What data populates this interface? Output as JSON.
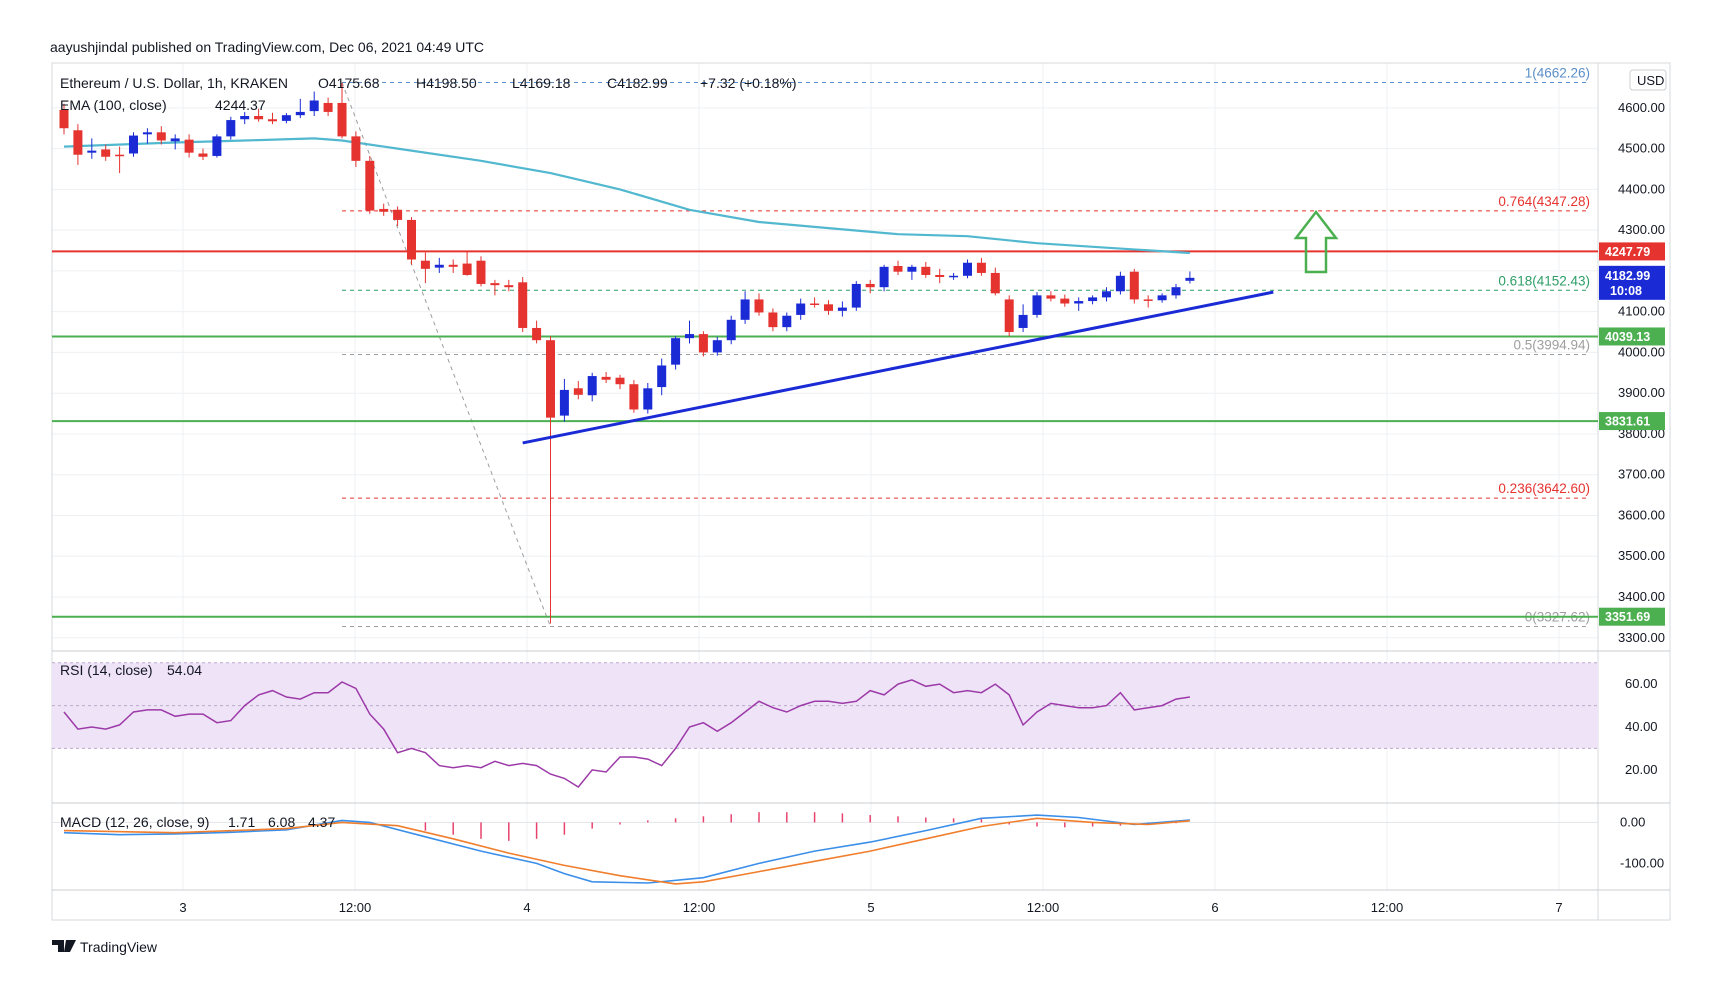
{
  "publish_line": "aayushjindal published on TradingView.com, Dec 06, 2021 04:49 UTC",
  "footer_brand": "TradingView",
  "colors": {
    "bull": "#1a2bd6",
    "bear": "#e5332f",
    "ema": "#52b8cf",
    "support": "#4caf50",
    "resistance": "#e5332f",
    "trend": "#1a2bd6",
    "fib": "#9e9e9e",
    "fib_red": "#e5332f",
    "fib_green": "#2e9e66",
    "fib_blue": "#5a8fc7",
    "rsi_line": "#9c3aa8",
    "rsi_band": "#efe3f8",
    "macd_line": "#3b8fe8",
    "signal_line": "#f07e2c",
    "hist": "#e8426c",
    "arrow": "#4caf50",
    "grid": "#eef0f3"
  },
  "legend": {
    "symbol": "Ethereum / U.S. Dollar, 1h, KRAKEN",
    "open": "O4175.68",
    "high": "H4198.50",
    "low": "L4169.18",
    "close": "C4182.99",
    "change": "+7.32 (+0.18%)",
    "ema_label": "EMA (100, close)",
    "ema_value": "4244.37"
  },
  "currency": "USD",
  "price_tag": {
    "value": "4182.99",
    "timer": "10:08"
  },
  "rsi_legend": {
    "label": "RSI (14, close)",
    "value": "54.04"
  },
  "macd_legend": {
    "label": "MACD (12, 26, close, 9)",
    "hist": "1.71",
    "macd": "6.08",
    "signal": "4.37"
  },
  "chart_data": {
    "type": "candlestick",
    "title": "Ethereum / U.S. Dollar, 1h, KRAKEN",
    "x_ticks": [
      "3",
      "12:00",
      "4",
      "12:00",
      "5",
      "12:00",
      "6",
      "12:00",
      "7"
    ],
    "y_ticks": [
      "4600.00",
      "4500.00",
      "4400.00",
      "4300.00",
      "4200.00",
      "4100.00",
      "4000.00",
      "3900.00",
      "3800.00",
      "3700.00",
      "3600.00",
      "3500.00",
      "3400.00",
      "3300.00"
    ],
    "y_range": [
      3270,
      4710
    ],
    "candles": [
      {
        "o": 4595,
        "h": 4610,
        "l": 4535,
        "c": 4550
      },
      {
        "o": 4545,
        "h": 4560,
        "l": 4460,
        "c": 4485
      },
      {
        "o": 4490,
        "h": 4525,
        "l": 4475,
        "c": 4495
      },
      {
        "o": 4498,
        "h": 4510,
        "l": 4470,
        "c": 4480
      },
      {
        "o": 4485,
        "h": 4505,
        "l": 4440,
        "c": 4483
      },
      {
        "o": 4488,
        "h": 4540,
        "l": 4480,
        "c": 4532
      },
      {
        "o": 4535,
        "h": 4550,
        "l": 4512,
        "c": 4540
      },
      {
        "o": 4540,
        "h": 4555,
        "l": 4510,
        "c": 4520
      },
      {
        "o": 4518,
        "h": 4535,
        "l": 4498,
        "c": 4525
      },
      {
        "o": 4522,
        "h": 4535,
        "l": 4478,
        "c": 4490
      },
      {
        "o": 4488,
        "h": 4500,
        "l": 4472,
        "c": 4480
      },
      {
        "o": 4482,
        "h": 4535,
        "l": 4478,
        "c": 4530
      },
      {
        "o": 4530,
        "h": 4578,
        "l": 4522,
        "c": 4570
      },
      {
        "o": 4572,
        "h": 4590,
        "l": 4560,
        "c": 4580
      },
      {
        "o": 4580,
        "h": 4598,
        "l": 4566,
        "c": 4572
      },
      {
        "o": 4572,
        "h": 4588,
        "l": 4560,
        "c": 4567
      },
      {
        "o": 4568,
        "h": 4587,
        "l": 4562,
        "c": 4582
      },
      {
        "o": 4582,
        "h": 4622,
        "l": 4575,
        "c": 4590
      },
      {
        "o": 4592,
        "h": 4640,
        "l": 4580,
        "c": 4618
      },
      {
        "o": 4612,
        "h": 4625,
        "l": 4580,
        "c": 4590
      },
      {
        "o": 4612,
        "h": 4662,
        "l": 4525,
        "c": 4530
      },
      {
        "o": 4530,
        "h": 4542,
        "l": 4455,
        "c": 4470
      },
      {
        "o": 4470,
        "h": 4482,
        "l": 4340,
        "c": 4348
      },
      {
        "o": 4352,
        "h": 4365,
        "l": 4335,
        "c": 4345
      },
      {
        "o": 4350,
        "h": 4358,
        "l": 4310,
        "c": 4325
      },
      {
        "o": 4325,
        "h": 4332,
        "l": 4215,
        "c": 4228
      },
      {
        "o": 4225,
        "h": 4245,
        "l": 4170,
        "c": 4205
      },
      {
        "o": 4208,
        "h": 4232,
        "l": 4195,
        "c": 4215
      },
      {
        "o": 4215,
        "h": 4228,
        "l": 4195,
        "c": 4210
      },
      {
        "o": 4218,
        "h": 4250,
        "l": 4188,
        "c": 4190
      },
      {
        "o": 4225,
        "h": 4236,
        "l": 4162,
        "c": 4168
      },
      {
        "o": 4170,
        "h": 4178,
        "l": 4140,
        "c": 4165
      },
      {
        "o": 4165,
        "h": 4178,
        "l": 4150,
        "c": 4160
      },
      {
        "o": 4172,
        "h": 4185,
        "l": 4050,
        "c": 4060
      },
      {
        "o": 4060,
        "h": 4078,
        "l": 4022,
        "c": 4030
      },
      {
        "o": 4030,
        "h": 4040,
        "l": 3335,
        "c": 3840
      },
      {
        "o": 3845,
        "h": 3935,
        "l": 3830,
        "c": 3908
      },
      {
        "o": 3912,
        "h": 3930,
        "l": 3885,
        "c": 3896
      },
      {
        "o": 3895,
        "h": 3950,
        "l": 3880,
        "c": 3942
      },
      {
        "o": 3940,
        "h": 3952,
        "l": 3925,
        "c": 3933
      },
      {
        "o": 3938,
        "h": 3945,
        "l": 3910,
        "c": 3922
      },
      {
        "o": 3922,
        "h": 3932,
        "l": 3852,
        "c": 3860
      },
      {
        "o": 3860,
        "h": 3925,
        "l": 3850,
        "c": 3912
      },
      {
        "o": 3915,
        "h": 3985,
        "l": 3895,
        "c": 3968
      },
      {
        "o": 3970,
        "h": 4040,
        "l": 3958,
        "c": 4035
      },
      {
        "o": 4035,
        "h": 4078,
        "l": 4022,
        "c": 4045
      },
      {
        "o": 4045,
        "h": 4052,
        "l": 3990,
        "c": 4000
      },
      {
        "o": 4000,
        "h": 4038,
        "l": 3992,
        "c": 4030
      },
      {
        "o": 4030,
        "h": 4090,
        "l": 4020,
        "c": 4080
      },
      {
        "o": 4080,
        "h": 4150,
        "l": 4070,
        "c": 4130
      },
      {
        "o": 4130,
        "h": 4145,
        "l": 4090,
        "c": 4098
      },
      {
        "o": 4098,
        "h": 4108,
        "l": 4052,
        "c": 4062
      },
      {
        "o": 4062,
        "h": 4098,
        "l": 4052,
        "c": 4090
      },
      {
        "o": 4092,
        "h": 4132,
        "l": 4080,
        "c": 4120
      },
      {
        "o": 4120,
        "h": 4135,
        "l": 4110,
        "c": 4118
      },
      {
        "o": 4118,
        "h": 4128,
        "l": 4092,
        "c": 4102
      },
      {
        "o": 4102,
        "h": 4125,
        "l": 4088,
        "c": 4110
      },
      {
        "o": 4110,
        "h": 4175,
        "l": 4102,
        "c": 4168
      },
      {
        "o": 4168,
        "h": 4178,
        "l": 4145,
        "c": 4160
      },
      {
        "o": 4160,
        "h": 4215,
        "l": 4150,
        "c": 4210
      },
      {
        "o": 4212,
        "h": 4225,
        "l": 4190,
        "c": 4198
      },
      {
        "o": 4198,
        "h": 4215,
        "l": 4178,
        "c": 4210
      },
      {
        "o": 4210,
        "h": 4222,
        "l": 4183,
        "c": 4190
      },
      {
        "o": 4190,
        "h": 4205,
        "l": 4170,
        "c": 4185
      },
      {
        "o": 4185,
        "h": 4195,
        "l": 4178,
        "c": 4188
      },
      {
        "o": 4188,
        "h": 4228,
        "l": 4182,
        "c": 4220
      },
      {
        "o": 4220,
        "h": 4232,
        "l": 4188,
        "c": 4195
      },
      {
        "o": 4195,
        "h": 4208,
        "l": 4140,
        "c": 4145
      },
      {
        "o": 4130,
        "h": 4140,
        "l": 4040,
        "c": 4050
      },
      {
        "o": 4060,
        "h": 4118,
        "l": 4050,
        "c": 4092
      },
      {
        "o": 4092,
        "h": 4148,
        "l": 4085,
        "c": 4140
      },
      {
        "o": 4140,
        "h": 4150,
        "l": 4125,
        "c": 4132
      },
      {
        "o": 4132,
        "h": 4142,
        "l": 4112,
        "c": 4120
      },
      {
        "o": 4120,
        "h": 4135,
        "l": 4102,
        "c": 4126
      },
      {
        "o": 4126,
        "h": 4140,
        "l": 4118,
        "c": 4135
      },
      {
        "o": 4135,
        "h": 4160,
        "l": 4125,
        "c": 4150
      },
      {
        "o": 4150,
        "h": 4198,
        "l": 4142,
        "c": 4188
      },
      {
        "o": 4198,
        "h": 4205,
        "l": 4120,
        "c": 4130
      },
      {
        "o": 4130,
        "h": 4140,
        "l": 4110,
        "c": 4128
      },
      {
        "o": 4128,
        "h": 4145,
        "l": 4122,
        "c": 4140
      },
      {
        "o": 4140,
        "h": 4168,
        "l": 4132,
        "c": 4160
      },
      {
        "o": 4175.68,
        "h": 4198.5,
        "l": 4169.18,
        "c": 4182.99
      }
    ],
    "ema100": [
      [
        0,
        4505
      ],
      [
        8,
        4515
      ],
      [
        13,
        4520
      ],
      [
        18,
        4525
      ],
      [
        20,
        4520
      ],
      [
        24,
        4500
      ],
      [
        30,
        4470
      ],
      [
        35,
        4440
      ],
      [
        40,
        4400
      ],
      [
        45,
        4350
      ],
      [
        50,
        4320
      ],
      [
        55,
        4305
      ],
      [
        60,
        4290
      ],
      [
        65,
        4285
      ],
      [
        70,
        4268
      ],
      [
        75,
        4257
      ],
      [
        81,
        4244
      ]
    ],
    "horizontal_levels": [
      {
        "price": 4247.79,
        "label": "4247.79",
        "color": "resistance"
      },
      {
        "price": 4039.13,
        "label": "4039.13",
        "color": "support"
      },
      {
        "price": 3831.61,
        "label": "3831.61",
        "color": "support"
      },
      {
        "price": 3351.69,
        "label": "3351.69",
        "color": "support"
      }
    ],
    "fib_levels": [
      {
        "price": 4662.26,
        "label": "1(4662.26)",
        "color": "fib_blue"
      },
      {
        "price": 4347.28,
        "label": "0.764(4347.28)",
        "color": "fib_red"
      },
      {
        "price": 4152.43,
        "label": "0.618(4152.43)",
        "color": "fib_green"
      },
      {
        "price": 3994.94,
        "label": "0.5(3994.94)",
        "color": "fib"
      },
      {
        "price": 3642.6,
        "label": "0.236(3642.60)",
        "color": "fib_red"
      },
      {
        "price": 3327.62,
        "label": "0(3327.62)",
        "color": "fib"
      }
    ],
    "trendline": [
      [
        33,
        3778
      ],
      [
        87,
        4148
      ]
    ],
    "rsi": {
      "y_ticks": [
        "60.00",
        "40.00",
        "20.00"
      ],
      "range": [
        5,
        75
      ],
      "band": [
        30,
        70
      ],
      "values": [
        47,
        39,
        40,
        39,
        41,
        47,
        48,
        48,
        45,
        46,
        46,
        42,
        43,
        50,
        55,
        57,
        54,
        53,
        56,
        56,
        61,
        58,
        46,
        39,
        28,
        30,
        28,
        22,
        21,
        22,
        21,
        24,
        22,
        23,
        22,
        18,
        16,
        12,
        20,
        19,
        26,
        26,
        25,
        22,
        30,
        40,
        42,
        38,
        42,
        47,
        52,
        49,
        47,
        50,
        52,
        52,
        51,
        52,
        57,
        55,
        60,
        62,
        59,
        60,
        56,
        57,
        56,
        60,
        55,
        41,
        47,
        51,
        50,
        49,
        49,
        50,
        56,
        48,
        49,
        50,
        53,
        54
      ]
    },
    "macd": {
      "y_ticks": [
        "0.00",
        "-100.00"
      ],
      "range": [
        -165,
        45
      ],
      "macd": [
        [
          0,
          -25
        ],
        [
          4,
          -30
        ],
        [
          8,
          -28
        ],
        [
          12,
          -24
        ],
        [
          16,
          -18
        ],
        [
          20,
          5
        ],
        [
          22,
          0
        ],
        [
          26,
          -35
        ],
        [
          30,
          -70
        ],
        [
          34,
          -100
        ],
        [
          36,
          -125
        ],
        [
          38,
          -145
        ],
        [
          42,
          -148
        ],
        [
          46,
          -135
        ],
        [
          50,
          -100
        ],
        [
          54,
          -70
        ],
        [
          58,
          -48
        ],
        [
          62,
          -20
        ],
        [
          66,
          10
        ],
        [
          70,
          18
        ],
        [
          73,
          12
        ],
        [
          77,
          -5
        ],
        [
          81,
          6
        ]
      ],
      "signal": [
        [
          0,
          -20
        ],
        [
          8,
          -25
        ],
        [
          16,
          -15
        ],
        [
          20,
          0
        ],
        [
          24,
          -8
        ],
        [
          28,
          -40
        ],
        [
          32,
          -75
        ],
        [
          36,
          -105
        ],
        [
          40,
          -130
        ],
        [
          44,
          -150
        ],
        [
          46,
          -145
        ],
        [
          50,
          -120
        ],
        [
          54,
          -95
        ],
        [
          58,
          -70
        ],
        [
          62,
          -40
        ],
        [
          66,
          -10
        ],
        [
          70,
          10
        ],
        [
          74,
          0
        ],
        [
          78,
          -5
        ],
        [
          81,
          4
        ]
      ],
      "hist": [
        [
          26,
          -20
        ],
        [
          28,
          -30
        ],
        [
          30,
          -40
        ],
        [
          32,
          -45
        ],
        [
          34,
          -40
        ],
        [
          36,
          -30
        ],
        [
          38,
          -15
        ],
        [
          40,
          -5
        ],
        [
          42,
          5
        ],
        [
          44,
          10
        ],
        [
          46,
          15
        ],
        [
          48,
          20
        ],
        [
          50,
          25
        ],
        [
          52,
          25
        ],
        [
          54,
          25
        ],
        [
          56,
          22
        ],
        [
          58,
          18
        ],
        [
          60,
          15
        ],
        [
          62,
          12
        ],
        [
          64,
          10
        ],
        [
          66,
          8
        ],
        [
          68,
          -5
        ],
        [
          70,
          -10
        ],
        [
          72,
          -12
        ],
        [
          74,
          -10
        ],
        [
          76,
          -8
        ],
        [
          78,
          -5
        ],
        [
          80,
          -2
        ]
      ]
    }
  }
}
